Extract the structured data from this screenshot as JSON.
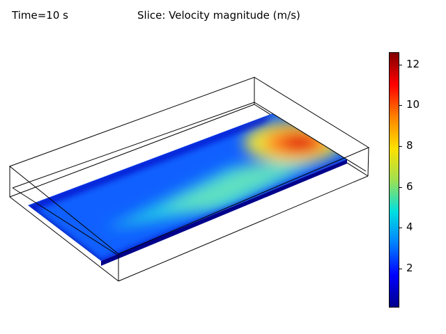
{
  "time_label": "Time=10 s",
  "plot_title": "Slice: Velocity magnitude (m/s)",
  "chart_data": {
    "type": "heatmap",
    "title": "Slice: Velocity magnitude (m/s)",
    "subtitle": "Time=10 s",
    "quantity": "Velocity magnitude",
    "unit": "m/s",
    "colorscale": "rainbow",
    "range": [
      0.1,
      12.6
    ],
    "ticks": [
      2,
      4,
      6,
      8,
      10,
      12
    ],
    "tick_labels": [
      "2",
      "4",
      "6",
      "8",
      "10",
      "12"
    ],
    "colors": [
      "#00008b",
      "#0000ff",
      "#0080ff",
      "#00e0e0",
      "#a0e050",
      "#ffe000",
      "#ff8000",
      "#ff0000",
      "#800000"
    ]
  }
}
